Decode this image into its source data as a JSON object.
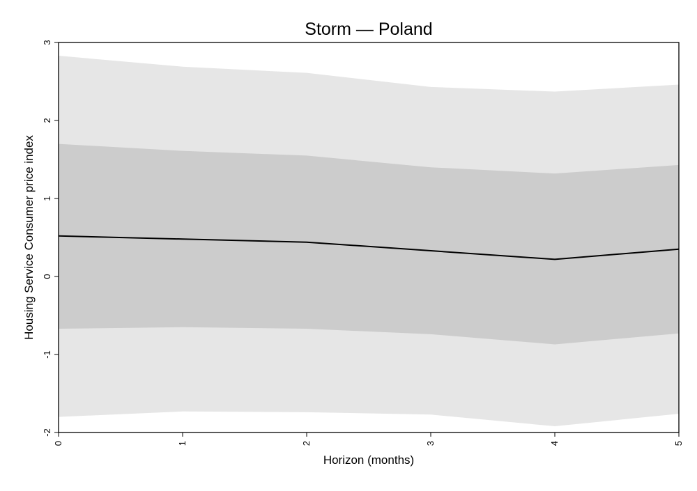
{
  "chart_data": {
    "type": "line",
    "title": "Storm — Poland",
    "xlabel": "Horizon (months)",
    "ylabel": "Housing Service Consumer price index",
    "x": [
      0,
      1,
      2,
      3,
      4,
      5
    ],
    "xlim": [
      0,
      5
    ],
    "ylim": [
      -2,
      3
    ],
    "xticks": [
      0,
      1,
      2,
      3,
      4,
      5
    ],
    "yticks": [
      -2,
      -1,
      0,
      1,
      2,
      3
    ],
    "grid": false,
    "legend": "none",
    "series": [
      {
        "values": [
          0.52,
          0.48,
          0.44,
          0.33,
          0.22,
          0.35
        ]
      }
    ],
    "bands": [
      {
        "level": "outer",
        "lower": [
          -1.8,
          -1.73,
          -1.74,
          -1.77,
          -1.92,
          -1.76
        ],
        "upper": [
          2.83,
          2.69,
          2.61,
          2.43,
          2.37,
          2.46
        ]
      },
      {
        "level": "inner",
        "lower": [
          -0.67,
          -0.65,
          -0.67,
          -0.74,
          -0.87,
          -0.73
        ],
        "upper": [
          1.7,
          1.61,
          1.55,
          1.4,
          1.32,
          1.43
        ]
      }
    ],
    "colors": {
      "outer_band": "#e6e6e6",
      "inner_band": "#cccccc",
      "line": "#000000",
      "axis": "#000000"
    }
  }
}
